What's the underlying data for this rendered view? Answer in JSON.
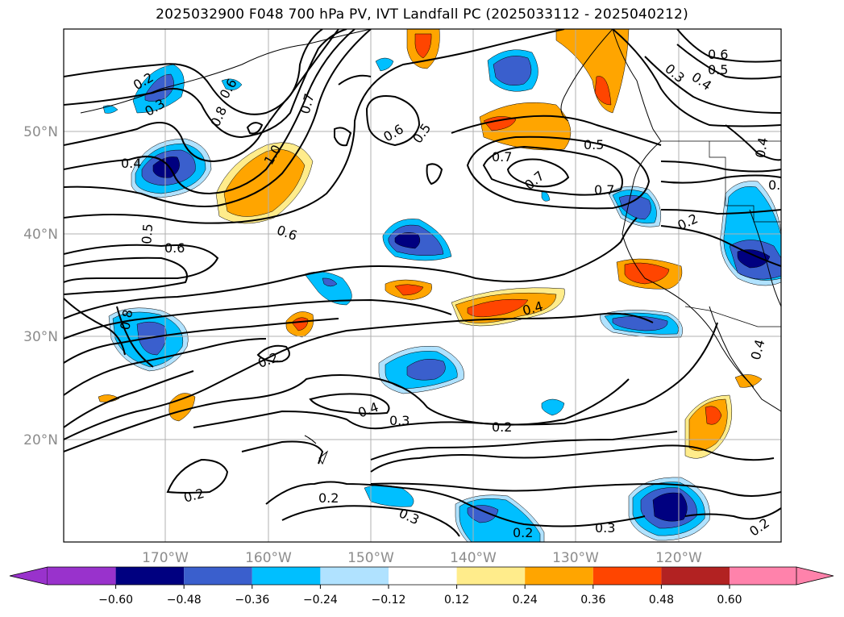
{
  "title": "2025032900 F048 700 hPa PV, IVT Landfall PC (2025033112 - 2025040212)",
  "map": {
    "lat_labels": [
      "50°N",
      "40°N",
      "30°N",
      "20°N"
    ],
    "lon_labels": [
      "170°W",
      "160°W",
      "150°W",
      "140°W",
      "130°W",
      "120°W"
    ],
    "contour_labels": [
      "0.2",
      "0.3",
      "0.4",
      "0.8",
      "0.6",
      "0.7",
      "1.0",
      "0.5",
      "0.6",
      "0.6",
      "0.5",
      "0.6",
      "0.7",
      "0.7",
      "0.5",
      "0.7",
      "0.6",
      "0.5",
      "0.4",
      "0.3",
      "0.4",
      "0.2",
      "0.8",
      "0.4",
      "0.2",
      "0.4",
      "0.3",
      "0.2",
      "0.2",
      "0.2",
      "0.3",
      "0.2",
      "0.3",
      "0.2",
      "0.4",
      "0.2"
    ]
  },
  "colorbar": {
    "tick_labels": [
      "−0.60",
      "−0.48",
      "−0.36",
      "−0.24",
      "−0.12",
      "0.12",
      "0.24",
      "0.36",
      "0.48",
      "0.60"
    ],
    "colors": [
      "#9932cc",
      "#000080",
      "#3a5fcd",
      "#00bfff",
      "#b0e2ff",
      "#ffffff",
      "#ffec8b",
      "#ffa500",
      "#ff4500",
      "#b22222",
      "#ff82ab"
    ]
  }
}
